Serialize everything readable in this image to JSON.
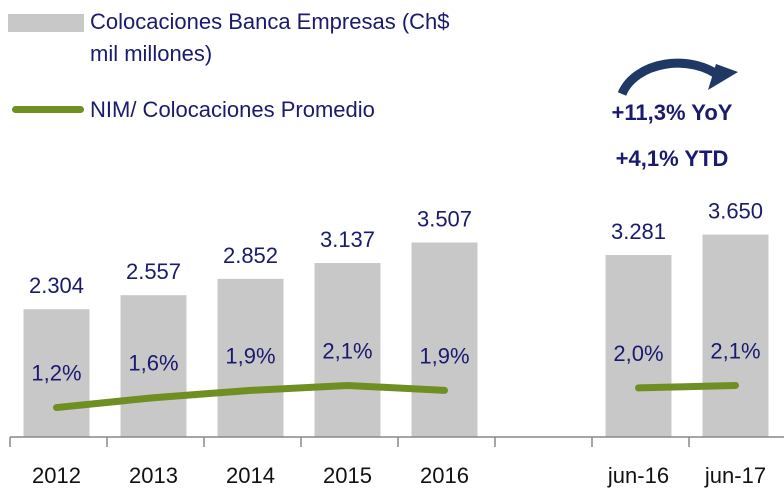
{
  "chart_data": {
    "type": "bar-line",
    "categories": [
      "2012",
      "2013",
      "2014",
      "2015",
      "2016",
      null,
      "jun-16",
      "jun-17"
    ],
    "series": [
      {
        "name": "Colocaciones Banca Empresas (Ch$ mil millones)",
        "type": "bar",
        "color": "#c8c8c8",
        "values": [
          2304,
          2557,
          2852,
          3137,
          3507,
          null,
          3281,
          3650
        ],
        "value_labels": [
          "2.304",
          "2.557",
          "2.852",
          "3.137",
          "3.507",
          null,
          "3.281",
          "3.650"
        ]
      },
      {
        "name": "NIM/ Colocaciones Promedio",
        "type": "line",
        "color": "#6f8f23",
        "axis": "y2",
        "values": [
          1.2,
          1.6,
          1.9,
          2.1,
          1.9,
          null,
          2.0,
          2.1
        ],
        "value_labels": [
          "1,2%",
          "1,6%",
          "1,9%",
          "2,1%",
          "1,9%",
          null,
          "2,0%",
          "2,1%"
        ]
      }
    ],
    "ylim": [
      0,
      7700
    ],
    "y2lim": [
      0,
      17.4
    ],
    "annotations": [
      "+11,3% YoY",
      "+4,1% YTD"
    ]
  }
}
